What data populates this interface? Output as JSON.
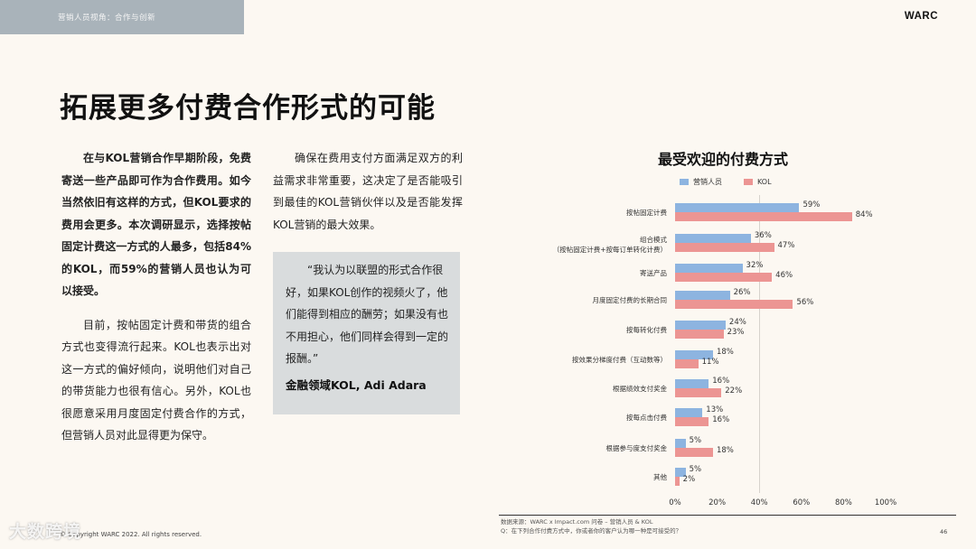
{
  "header": {
    "section_label": "营销人员视角：合作与创新",
    "brand": "WARC"
  },
  "page_title": "拓展更多付费合作形式的可能",
  "column1": {
    "paragraphs": [
      "在与KOL营销合作早期阶段，免费寄送一些产品即可作为合作费用。如今当然依旧有这样的方式，但KOL要求的费用会更多。本次调研显示，选择按帖固定计费这一方式的人最多，包括84%的KOL，而59%的营销人员也认为可以接受。",
      "目前，按帖固定计费和带货的组合方式也变得流行起来。KOL也表示出对这一方式的偏好倾向，说明他们对自己的带货能力也很有信心。另外，KOL也很愿意采用月度固定付费合作的方式，但营销人员对此显得更为保守。"
    ]
  },
  "column2": {
    "paragraph": "确保在费用支付方面满足双方的利益需求非常重要，这决定了是否能吸引到最佳的KOL营销伙伴以及是否能发挥KOL营销的最大效果。",
    "quote": "“我认为以联盟的形式合作很好，如果KOL创作的视频火了，他们能得到相应的酬劳；如果没有也不用担心，他们同样会得到一定的报酬。”",
    "attribution": "金融领域KOL, Adi Adara"
  },
  "colors": {
    "marketer": "#8db4e0",
    "kol": "#ec9593",
    "background": "#fcf8f2",
    "header_band": "#a9b3ba",
    "quote_box": "#d9dcdd"
  },
  "chart_data": {
    "type": "bar",
    "orientation": "horizontal",
    "title": "最受欢迎的付费方式",
    "legend": [
      "营销人员",
      "KOL"
    ],
    "legend_position": "top",
    "categories": [
      "按帖固定计费",
      "组合模式（按帖固定计费+按每订单转化计费）",
      "寄送产品",
      "月度固定付费的长期合同",
      "按每转化付费",
      "按效果分梯度付费（互动数等）",
      "根据绩效支付奖金",
      "按每点击付费",
      "根据参与度支付奖金",
      "其他"
    ],
    "category_lines": [
      [
        "按帖固定计费"
      ],
      [
        "组合模式",
        "（按帖固定计费+按每订单转化计费）"
      ],
      [
        "寄送产品"
      ],
      [
        "月度固定付费的长期合同"
      ],
      [
        "按每转化付费"
      ],
      [
        "按效果分梯度付费（互动数等）"
      ],
      [
        "根据绩效支付奖金"
      ],
      [
        "按每点击付费"
      ],
      [
        "根据参与度支付奖金"
      ],
      [
        "其他"
      ]
    ],
    "series": [
      {
        "name": "营销人员",
        "values": [
          59,
          36,
          32,
          26,
          24,
          18,
          16,
          13,
          5,
          5
        ]
      },
      {
        "name": "KOL",
        "values": [
          84,
          47,
          46,
          56,
          23,
          11,
          22,
          16,
          18,
          2
        ]
      }
    ],
    "xlim": [
      0,
      100
    ],
    "xticks": [
      "0%",
      "20%",
      "40%",
      "60%",
      "80%",
      "100%"
    ],
    "gridlines": [
      40
    ],
    "unit": "%"
  },
  "footer": {
    "source_line1": "数据来源：WARC x Impact.com 问卷 – 营销人员 & KOL",
    "source_line2": "Q：在下列合作付费方式中，你或者你的客户认为哪一种是可接受的？",
    "copyright": "© Copyright WARC 2022. All rights reserved.",
    "page_number": "46",
    "watermark": "大数跨境"
  }
}
